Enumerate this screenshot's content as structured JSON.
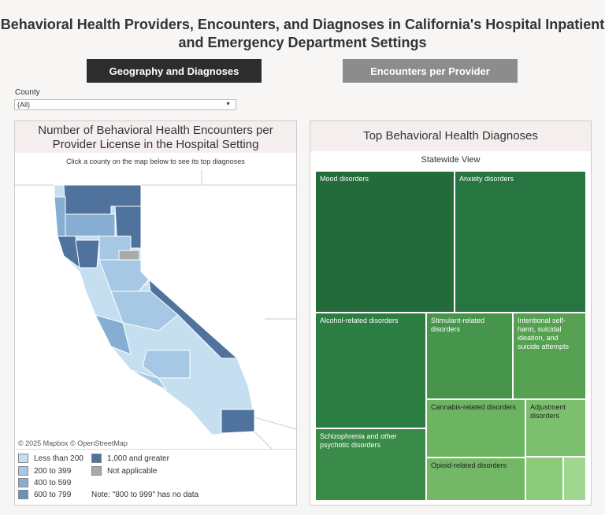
{
  "title": "Behavioral Health Providers, Encounters, and Diagnoses in California's Hospital Inpatient and Emergency Department Settings",
  "tabs": [
    {
      "label": "Geography and Diagnoses",
      "active": true
    },
    {
      "label": "Encounters per Provider",
      "active": false
    }
  ],
  "filter": {
    "label": "County",
    "value": "(All)"
  },
  "map_panel": {
    "title": "Number of Behavioral Health Encounters per Provider License in the Hospital Setting",
    "subtitle": "Click a county on the map below to see its top diagnoses",
    "attribution": "© 2025 Mapbox  © OpenStreetMap",
    "legend": [
      {
        "label": "Less than 200",
        "color": "#c6dff0"
      },
      {
        "label": "200 to 399",
        "color": "#a6c8e4"
      },
      {
        "label": "400 to 599",
        "color": "#86aed3"
      },
      {
        "label": "600 to 799",
        "color": "#6a91ba"
      },
      {
        "label": "1,000 and greater",
        "color": "#4f739c"
      },
      {
        "label": "Not applicable",
        "color": "#a9a9a9"
      }
    ],
    "note": "Note: \"800 to 999\" has no data"
  },
  "diag_panel": {
    "title": "Top Behavioral Health Diagnoses",
    "subtitle": "Statewide View",
    "items": [
      {
        "label": "Mood disorders",
        "color": "#246b3b"
      },
      {
        "label": "Anxiety disorders",
        "color": "#277540"
      },
      {
        "label": "Alcohol-related disorders",
        "color": "#2c7d42"
      },
      {
        "label": "Schizophrenia and other psychotic disorders",
        "color": "#3a8a49"
      },
      {
        "label": "Stimulant-related disorders",
        "color": "#47944d"
      },
      {
        "label": "Intentional self-harm, suicidal ideation, and suicide attempts",
        "color": "#55a051"
      },
      {
        "label": "Cannabis-related disorders",
        "color": "#6cb362"
      },
      {
        "label": "Opioid-related disorders",
        "color": "#72b866"
      },
      {
        "label": "Adjustment disorders",
        "color": "#7cbf6f"
      },
      {
        "label": "",
        "color": "#8ccb7c"
      },
      {
        "label": "",
        "color": "#a0d78f"
      }
    ]
  }
}
